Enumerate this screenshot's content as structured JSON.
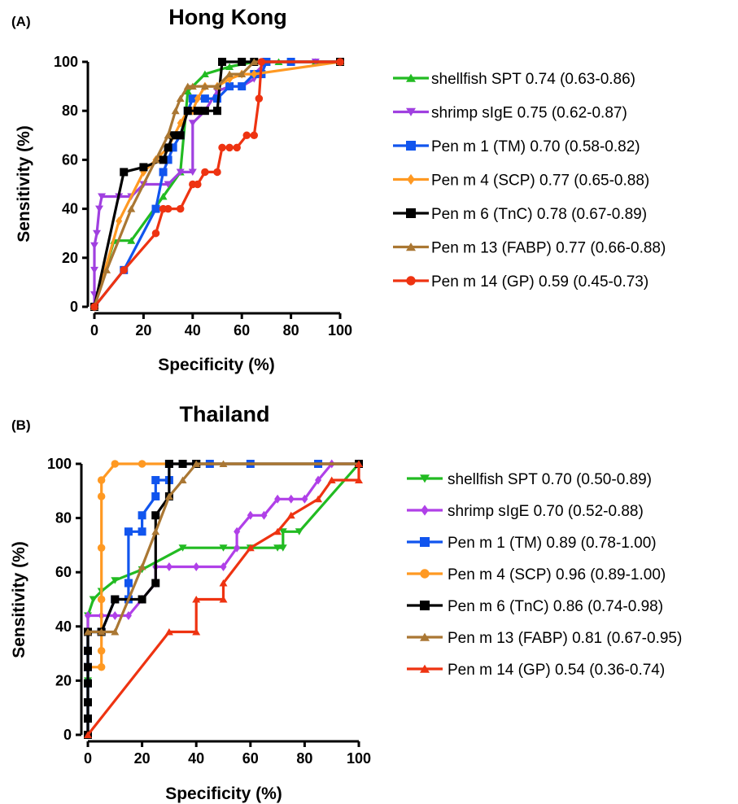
{
  "panel_a": {
    "letter": "(A)",
    "title": "Hong Kong",
    "xlabel": "Specificity (%)",
    "ylabel": "Sensitivity (%)",
    "xticks": [
      "0",
      "20",
      "40",
      "60",
      "80",
      "100"
    ],
    "yticks": [
      "0",
      "20",
      "40",
      "60",
      "80",
      "100"
    ]
  },
  "panel_b": {
    "letter": "(B)",
    "title": "Thailand",
    "xlabel": "Specificity (%)",
    "ylabel": "Sensitivity (%)",
    "xticks": [
      "0",
      "20",
      "40",
      "60",
      "80",
      "100"
    ],
    "yticks": [
      "0",
      "20",
      "40",
      "60",
      "80",
      "100"
    ]
  },
  "chart_data": [
    {
      "type": "line",
      "title": "Hong Kong",
      "xlabel": "Specificity (%)",
      "ylabel": "Sensitivity (%)",
      "xlim": [
        0,
        100
      ],
      "ylim": [
        0,
        100
      ],
      "grid": false,
      "legend_position": "right",
      "series": [
        {
          "name": "shellfish SPT 0.74 (0.63-0.86)",
          "color": "#22bb22",
          "marker": "triangle-up",
          "x": [
            0,
            8,
            15,
            28,
            35,
            38,
            45,
            55,
            65,
            75,
            90,
            100
          ],
          "y": [
            0,
            27,
            27,
            45,
            55,
            88,
            95,
            98,
            100,
            100,
            100,
            100
          ]
        },
        {
          "name": "shrimp sIgE 0.75 (0.62-0.87)",
          "color": "#a040e0",
          "marker": "triangle-down",
          "x": [
            0,
            0,
            0,
            0,
            1,
            2,
            3,
            10,
            15,
            20,
            30,
            35,
            40,
            40,
            45,
            50,
            55,
            60,
            65,
            65,
            70,
            80,
            90,
            100
          ],
          "y": [
            0,
            5,
            15,
            25,
            30,
            40,
            45,
            45,
            45,
            50,
            50,
            55,
            55,
            75,
            80,
            88,
            90,
            90,
            93,
            95,
            100,
            100,
            100,
            100
          ]
        },
        {
          "name": "Pen m 1 (TM) 0.70 (0.58-0.82)",
          "color": "#1155ee",
          "marker": "square",
          "x": [
            0,
            12,
            25,
            28,
            30,
            32,
            35,
            38,
            40,
            45,
            50,
            55,
            60,
            65,
            68,
            70,
            80,
            100
          ],
          "y": [
            0,
            15,
            40,
            55,
            60,
            65,
            70,
            80,
            85,
            85,
            85,
            90,
            90,
            95,
            95,
            100,
            100,
            100
          ]
        },
        {
          "name": "Pen m 4 (SCP) 0.77 (0.65-0.88)",
          "color": "#ff9922",
          "marker": "diamond",
          "x": [
            0,
            10,
            20,
            25,
            30,
            35,
            38,
            40,
            42,
            45,
            50,
            55,
            60,
            65,
            100
          ],
          "y": [
            0,
            35,
            55,
            60,
            65,
            75,
            80,
            80,
            85,
            90,
            90,
            93,
            95,
            95,
            100
          ]
        },
        {
          "name": "Pen m 6 (TnC) 0.78 (0.67-0.89)",
          "color": "#000000",
          "marker": "square",
          "x": [
            0,
            12,
            20,
            28,
            30,
            32,
            35,
            38,
            42,
            45,
            50,
            52,
            60,
            65,
            100
          ],
          "y": [
            0,
            55,
            57,
            60,
            65,
            70,
            70,
            80,
            80,
            80,
            80,
            100,
            100,
            100,
            100
          ]
        },
        {
          "name": "Pen m 13 (FABP) 0.77 (0.66-0.88)",
          "color": "#aa7733",
          "marker": "triangle-up",
          "x": [
            0,
            5,
            15,
            25,
            30,
            33,
            35,
            38,
            40,
            45,
            50,
            55,
            60,
            65,
            100
          ],
          "y": [
            0,
            15,
            40,
            60,
            70,
            80,
            85,
            90,
            90,
            90,
            90,
            95,
            95,
            100,
            100
          ]
        },
        {
          "name": "Pen m 14 (GP) 0.59 (0.45-0.73)",
          "color": "#ee3311",
          "marker": "circle",
          "x": [
            0,
            12,
            25,
            28,
            30,
            35,
            40,
            42,
            45,
            50,
            52,
            55,
            58,
            62,
            65,
            67,
            68,
            100
          ],
          "y": [
            0,
            15,
            30,
            40,
            40,
            40,
            50,
            50,
            55,
            55,
            65,
            65,
            65,
            70,
            70,
            85,
            100,
            100
          ]
        }
      ]
    },
    {
      "type": "line",
      "title": "Thailand",
      "xlabel": "Specificity (%)",
      "ylabel": "Sensitivity (%)",
      "xlim": [
        0,
        100
      ],
      "ylim": [
        0,
        100
      ],
      "grid": false,
      "legend_position": "right",
      "series": [
        {
          "name": "shellfish SPT 0.70 (0.50-0.89)",
          "color": "#22bb22",
          "marker": "triangle-down",
          "x": [
            0,
            0,
            0,
            0,
            2,
            5,
            10,
            20,
            35,
            50,
            60,
            70,
            72,
            72,
            78,
            100
          ],
          "y": [
            0,
            20,
            38,
            44,
            50,
            53,
            57,
            61,
            69,
            69,
            69,
            69,
            69,
            75,
            75,
            100
          ]
        },
        {
          "name": "shrimp sIgE 0.70 (0.52-0.88)",
          "color": "#b040e8",
          "marker": "diamond",
          "x": [
            0,
            0,
            5,
            10,
            15,
            20,
            25,
            25,
            30,
            40,
            50,
            55,
            55,
            60,
            65,
            70,
            75,
            80,
            85,
            90,
            100
          ],
          "y": [
            0,
            44,
            44,
            44,
            44,
            50,
            56,
            62,
            62,
            62,
            62,
            69,
            75,
            81,
            81,
            87,
            87,
            87,
            94,
            100,
            100
          ]
        },
        {
          "name": "Pen m 1 (TM) 0.89 (0.78-1.00)",
          "color": "#1155ee",
          "marker": "square",
          "x": [
            0,
            0,
            0,
            0,
            0,
            0,
            0,
            5,
            10,
            15,
            15,
            15,
            20,
            20,
            25,
            25,
            30,
            30,
            35,
            40,
            45,
            60,
            85,
            100
          ],
          "y": [
            0,
            6,
            12,
            19,
            25,
            31,
            38,
            38,
            50,
            50,
            56,
            75,
            75,
            81,
            88,
            94,
            94,
            100,
            100,
            100,
            100,
            100,
            100,
            100
          ]
        },
        {
          "name": "Pen m 4 (SCP) 0.96 (0.89-1.00)",
          "color": "#ff9922",
          "marker": "circle",
          "x": [
            0,
            5,
            5,
            5,
            5,
            5,
            5,
            10,
            20,
            30,
            40,
            100
          ],
          "y": [
            25,
            25,
            31,
            50,
            69,
            88,
            94,
            100,
            100,
            100,
            100,
            100
          ]
        },
        {
          "name": "Pen m 6 (TnC) 0.86 (0.74-0.98)",
          "color": "#000000",
          "marker": "square",
          "x": [
            0,
            0,
            0,
            0,
            0,
            0,
            0,
            5,
            10,
            20,
            25,
            25,
            30,
            30,
            35,
            40,
            100
          ],
          "y": [
            0,
            6,
            12,
            19,
            25,
            31,
            38,
            38,
            50,
            50,
            56,
            81,
            88,
            100,
            100,
            100,
            100
          ]
        },
        {
          "name": "Pen m 13 (FABP) 0.81 (0.67-0.95)",
          "color": "#aa7733",
          "marker": "triangle-up",
          "x": [
            0,
            5,
            10,
            20,
            25,
            30,
            35,
            40,
            50,
            100
          ],
          "y": [
            38,
            38,
            38,
            62,
            75,
            88,
            94,
            100,
            100,
            100
          ]
        },
        {
          "name": "Pen m 14 (GP) 0.54 (0.36-0.74)",
          "color": "#ee3311",
          "marker": "triangle-up",
          "x": [
            0,
            30,
            40,
            40,
            50,
            50,
            60,
            70,
            75,
            85,
            90,
            100,
            100
          ],
          "y": [
            0,
            38,
            38,
            50,
            50,
            56,
            69,
            75,
            81,
            87,
            94,
            94,
            100
          ]
        }
      ]
    }
  ]
}
